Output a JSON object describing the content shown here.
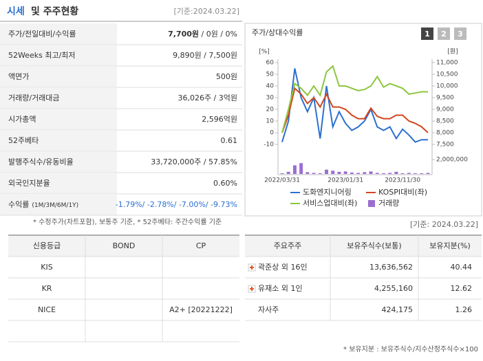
{
  "header": {
    "title_highlight": "시세",
    "title": "및 주주현황",
    "date": "[기준:2024.03.22]"
  },
  "quote_table": {
    "rows": [
      {
        "label": "주가/전일대비/수익률",
        "value_bold": "7,700원",
        "value": " / 0원 / 0%"
      },
      {
        "label": "52Weeks 최고/최저",
        "value": "9,890원 / 7,500원"
      },
      {
        "label": "액면가",
        "value": "500원"
      },
      {
        "label": "거래량/거래대금",
        "value": "36,026주 / 3억원"
      },
      {
        "label": "시가총액",
        "value": "2,596억원"
      },
      {
        "label": "52주베타",
        "value": "0.61"
      },
      {
        "label": "발행주식수/유동비율",
        "value": "33,720,000주 / 57.85%"
      },
      {
        "label": "외국인지분율",
        "value": "0.60%"
      },
      {
        "label": "수익률",
        "label_note": "(1M/3M/6M/1Y)",
        "value": "-1.79%/ -2.78%/ -7.00%/ -9.73%"
      }
    ],
    "footnote": "* 수정주가(차트포함), 보통주 기준, * 52주베타: 주간수익률 기준"
  },
  "tabs": [
    "1",
    "2",
    "3"
  ],
  "chart_data": {
    "type": "line",
    "title": "주가/상대수익률",
    "y_unit": "[%]",
    "y2_unit": "[원]",
    "categories": [
      "2022/03/31",
      null,
      null,
      null,
      null,
      null,
      null,
      null,
      null,
      null,
      "2023/01/31",
      null,
      null,
      null,
      null,
      null,
      null,
      null,
      null,
      "2023/11/30",
      null,
      null,
      null,
      null
    ],
    "ylim": [
      -10,
      60
    ],
    "yticks": [
      -10,
      0,
      10,
      20,
      30,
      40,
      50,
      60
    ],
    "y2lim": [
      7500,
      11000
    ],
    "y2ticks": [
      {
        "value": 7500,
        "label": "7,500"
      },
      {
        "value": 8000,
        "label": "8,000"
      },
      {
        "value": 8500,
        "label": "8,500"
      },
      {
        "value": 9000,
        "label": "9,000"
      },
      {
        "value": 9500,
        "label": "9,500"
      },
      {
        "value": 10000,
        "label": "10,000"
      },
      {
        "value": 10500,
        "label": "10,500"
      },
      {
        "value": 11000,
        "label": "11,000"
      }
    ],
    "volume_lim": [
      0,
      2000000
    ],
    "volume_ticks": [
      {
        "value": 2000000,
        "label": "2,000,000"
      }
    ],
    "series": [
      {
        "name": "도화엔지니어링",
        "color": "#2b6fcf",
        "axis": "y2",
        "values": [
          7600,
          8500,
          10750,
          9500,
          8900,
          9500,
          7750,
          10000,
          8250,
          8900,
          8400,
          8100,
          8250,
          8500,
          9000,
          8250,
          8100,
          8250,
          7750,
          8150,
          7900,
          7600,
          7700,
          7700
        ]
      },
      {
        "name": "KOSPI대비(좌)",
        "color": "#d2451e",
        "values": [
          0,
          15,
          38,
          33,
          25,
          30,
          22,
          33,
          22,
          22,
          20,
          15,
          12,
          12,
          21,
          14,
          12,
          12,
          15,
          15,
          10,
          8,
          5,
          0
        ]
      },
      {
        "name": "서비스업대비(좌)",
        "color": "#8cc63f",
        "values": [
          0,
          20,
          42,
          38,
          32,
          40,
          32,
          52,
          57,
          40,
          40,
          38,
          36,
          37,
          40,
          48,
          39,
          42,
          40,
          38,
          33,
          34,
          35,
          35
        ]
      },
      {
        "name": "거래량",
        "color": "#9b6fd0",
        "type": "bar",
        "axis": "volume",
        "values": [
          100000,
          300000,
          1200000,
          1500000,
          250000,
          150000,
          100000,
          600000,
          450000,
          300000,
          350000,
          200000,
          150000,
          250000,
          350000,
          150000,
          100000,
          150000,
          300000,
          100000,
          150000,
          100000,
          100000,
          150000
        ]
      }
    ]
  },
  "date2": "[기준: 2024.03.22]",
  "credit_table": {
    "headers": [
      "신용등급",
      "BOND",
      "CP"
    ],
    "rows": [
      {
        "agency": "KIS"
      },
      {
        "agency": "KR"
      },
      {
        "agency": "NICE",
        "cp": "A2+ [20221222]"
      }
    ]
  },
  "holder_table": {
    "headers": [
      "주요주주",
      "보유주식수(보통)",
      "보유지분(%)"
    ],
    "rows": [
      {
        "name": "곽준상 외 16인",
        "shares": "13,636,562",
        "pct": "40.44",
        "expand": true
      },
      {
        "name": "유재소 외 1인",
        "shares": "4,255,160",
        "pct": "12.62",
        "expand": true
      },
      {
        "name": "자사주",
        "shares": "424,175",
        "pct": "1.26"
      }
    ],
    "footnote": "* 보유지분 : 보유주식수/지수산정주식수×100"
  }
}
